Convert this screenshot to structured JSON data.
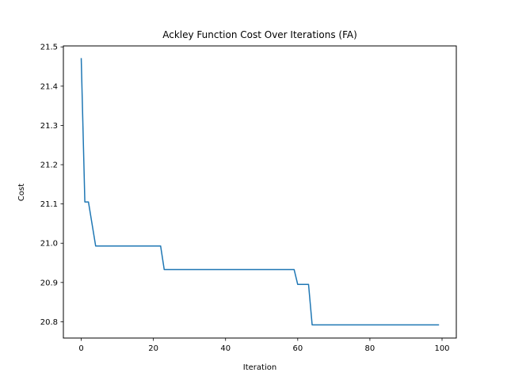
{
  "chart_data": {
    "type": "line",
    "title": "Ackley Function Cost Over Iterations (FA)",
    "xlabel": "Iteration",
    "ylabel": "Cost",
    "xlim": [
      -4.95,
      103.95
    ],
    "ylim": [
      20.7585,
      21.5025
    ],
    "xticks": [
      0,
      20,
      40,
      60,
      80,
      100
    ],
    "yticks": [
      20.8,
      20.9,
      21.0,
      21.1,
      21.2,
      21.3,
      21.4,
      21.5
    ],
    "ytick_labels": [
      "20.8",
      "20.9",
      "21.0",
      "21.1",
      "21.2",
      "21.3",
      "21.4",
      "21.5"
    ],
    "grid": false,
    "series": [
      {
        "color": "#1f77b4",
        "points": [
          [
            0,
            21.47
          ],
          [
            1,
            21.105
          ],
          [
            2,
            21.105
          ],
          [
            4,
            20.993
          ],
          [
            22,
            20.993
          ],
          [
            23,
            20.933
          ],
          [
            59,
            20.933
          ],
          [
            60,
            20.895
          ],
          [
            63,
            20.895
          ],
          [
            64,
            20.792
          ],
          [
            99,
            20.792
          ]
        ]
      }
    ]
  }
}
